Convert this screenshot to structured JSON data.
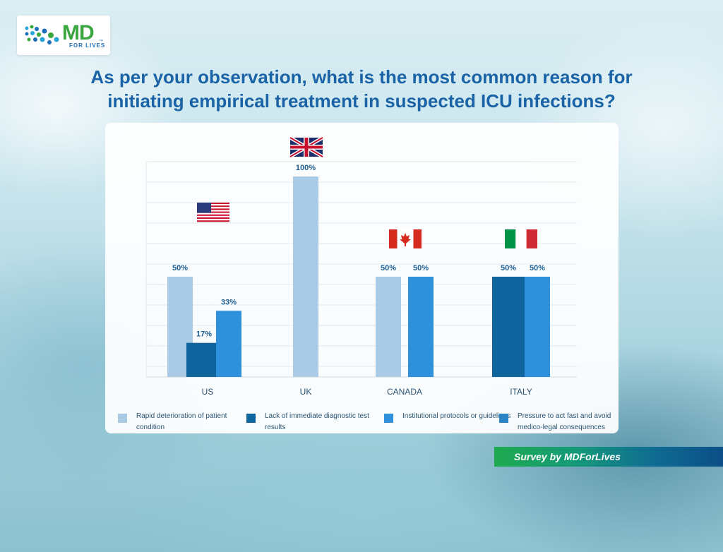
{
  "logo": {
    "text_md": "MD",
    "text_sub": "FOR LIVES",
    "tm": "™"
  },
  "title": "As per your observation, what is the most common reason for initiating empirical treatment in suspected ICU infections?",
  "survey_label": "Survey by MDForLives",
  "chart_data": {
    "type": "bar",
    "categories": [
      "US",
      "UK",
      "CANADA",
      "ITALY"
    ],
    "series": [
      {
        "name": "Rapid deterioration of patient condition",
        "color": "#a9cbe6",
        "values": [
          50,
          100,
          50,
          null
        ],
        "labels": [
          "50%",
          "100%",
          "50%",
          ""
        ]
      },
      {
        "name": "Lack of immediate diagnostic test results",
        "color": "#11659f",
        "values": [
          17,
          null,
          null,
          50
        ],
        "labels": [
          "17%",
          "",
          "",
          "50%"
        ]
      },
      {
        "name": "Institutional protocols or guidelines",
        "color": "#2f90dc",
        "values": [
          33,
          null,
          50,
          50
        ],
        "labels": [
          "33%",
          "",
          "50%",
          "50%"
        ]
      },
      {
        "name": "Pressure to act fast and avoid medico-legal consequences",
        "color": "#2a84c6",
        "values": [
          null,
          null,
          null,
          null
        ],
        "labels": [
          "",
          "",
          "",
          ""
        ]
      }
    ],
    "flags": [
      "us-flag",
      "uk-flag",
      "canada-flag",
      "italy-flag"
    ],
    "ylim": [
      0,
      100
    ],
    "grid": true,
    "legend_position": "bottom"
  },
  "legend": [
    {
      "label": "Rapid deterioration of patient condition",
      "color": "#a9cbe6"
    },
    {
      "label": "Lack of immediate diagnostic test results",
      "color": "#11659f"
    },
    {
      "label": "Institutional protocols or guidelines",
      "color": "#2f90dc"
    },
    {
      "label": "Pressure to act fast and avoid medico-legal consequences",
      "color": "#2a84c6"
    }
  ]
}
